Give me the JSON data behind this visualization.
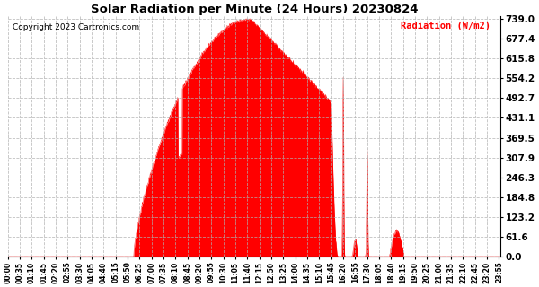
{
  "title": "Solar Radiation per Minute (24 Hours) 20230824",
  "ylabel": "Radiation (W/m2)",
  "copyright_text": "Copyright 2023 Cartronics.com",
  "fill_color": "#ff0000",
  "line_color": "#ff0000",
  "background_color": "#ffffff",
  "grid_color": "#b0b0b0",
  "yticks": [
    0.0,
    61.6,
    123.2,
    184.8,
    246.3,
    307.9,
    369.5,
    431.1,
    492.7,
    554.2,
    615.8,
    677.4,
    739.0
  ],
  "ymax": 739.0,
  "ymin": 0.0,
  "total_minutes": 1440,
  "sunrise_minute": 368,
  "sunset_minute": 1185,
  "peak_minute": 710,
  "peak_value": 739.0,
  "cliff_minute": 955,
  "xtick_interval_minutes": 35
}
